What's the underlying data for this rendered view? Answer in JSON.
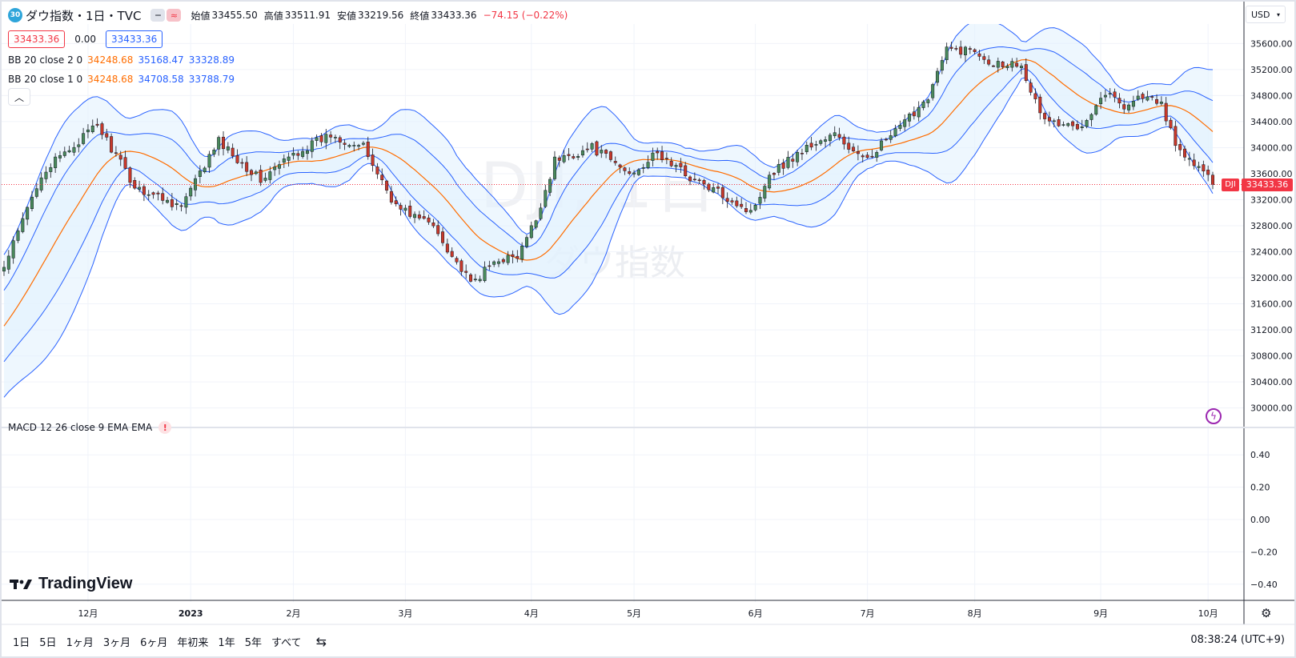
{
  "header": {
    "symbol_badge": "30",
    "title": "ダウ指数・1日・TVC",
    "pill_left_icon": "minus-icon",
    "pill_right_icon": "approx-icon",
    "ohlc": [
      {
        "label": "始値",
        "value": "33455.50"
      },
      {
        "label": "高値",
        "value": "33511.91"
      },
      {
        "label": "安値",
        "value": "33219.56"
      },
      {
        "label": "終値",
        "value": "33433.36"
      }
    ],
    "change": "−74.15 (−0.22%)",
    "bid": "33433.36",
    "spread": "0.00",
    "ask": "33433.36"
  },
  "indicators": {
    "bb2": {
      "label": "BB 20 close 2 0",
      "basis": "34248.68",
      "upper": "35168.47",
      "lower": "33328.89"
    },
    "bb1": {
      "label": "BB 20 close 1 0",
      "basis": "34248.68",
      "upper": "34708.58",
      "lower": "33788.79"
    },
    "macd": {
      "label": "MACD 12 26 close 9 EMA EMA"
    }
  },
  "currency": "USD",
  "watermark": {
    "line1": "DJI, 1日",
    "line2": "ダウ指数"
  },
  "last_price": {
    "symbol": "DJI",
    "value": "33433.36"
  },
  "logo": "TradingView",
  "ranges": [
    "1日",
    "5日",
    "1ヶ月",
    "3ヶ月",
    "6ヶ月",
    "年初来",
    "1年",
    "5年",
    "すべて"
  ],
  "clock": "08:38:24 (UTC+9)",
  "colors": {
    "up": "#4a8a5c",
    "down": "#c8392b",
    "bb_outer": "#2962ff",
    "bb_basis": "#ff6d00",
    "band_fill": "#e3f2fd",
    "last_price": "#f23645"
  },
  "chart_data": {
    "type": "candlestick",
    "price_axis": {
      "range": [
        29700,
        35900
      ],
      "ticks": [
        30000,
        30400,
        30800,
        31200,
        31600,
        32000,
        32400,
        32800,
        33200,
        33600,
        34000,
        34400,
        34800,
        35200,
        35600
      ]
    },
    "price_tick_labels": [
      "30000.00",
      "30400.00",
      "30800.00",
      "31200.00",
      "31600.00",
      "32000.00",
      "32400.00",
      "32800.00",
      "33200.00",
      "33600.00",
      "34000.00",
      "34400.00",
      "34800.00",
      "35200.00",
      "35600.00"
    ],
    "macd_axis": {
      "range": [
        -0.5,
        0.5
      ],
      "ticks": [
        -0.4,
        -0.2,
        0,
        0.2,
        0.4
      ]
    },
    "macd_tick_labels": [
      "−0.40",
      "−0.20",
      "0.00",
      "0.20",
      "0.40"
    ],
    "time_labels": [
      "12月",
      "2023",
      "2月",
      "3月",
      "4月",
      "5月",
      "6月",
      "7月",
      "8月",
      "9月",
      "10月"
    ],
    "time_label_bars": [
      18,
      40,
      62,
      86,
      113,
      135,
      161,
      185,
      208,
      235,
      258
    ],
    "num_bars": 260,
    "last_close": 33433.36,
    "anchors": [
      [
        0,
        32150
      ],
      [
        8,
        33600
      ],
      [
        20,
        34350
      ],
      [
        28,
        33400
      ],
      [
        38,
        33100
      ],
      [
        46,
        34100
      ],
      [
        55,
        33500
      ],
      [
        62,
        33900
      ],
      [
        70,
        34200
      ],
      [
        77,
        34000
      ],
      [
        84,
        33100
      ],
      [
        92,
        32800
      ],
      [
        100,
        31900
      ],
      [
        106,
        32300
      ],
      [
        110,
        32300
      ],
      [
        114,
        32900
      ],
      [
        118,
        33800
      ],
      [
        126,
        34000
      ],
      [
        134,
        33600
      ],
      [
        140,
        33900
      ],
      [
        148,
        33500
      ],
      [
        156,
        33200
      ],
      [
        160,
        33000
      ],
      [
        164,
        33600
      ],
      [
        172,
        34000
      ],
      [
        178,
        34200
      ],
      [
        184,
        33800
      ],
      [
        192,
        34300
      ],
      [
        198,
        34800
      ],
      [
        202,
        35500
      ],
      [
        208,
        35500
      ],
      [
        212,
        35300
      ],
      [
        218,
        35300
      ],
      [
        222,
        34500
      ],
      [
        226,
        34350
      ],
      [
        230,
        34300
      ],
      [
        236,
        34850
      ],
      [
        240,
        34650
      ],
      [
        244,
        34800
      ],
      [
        248,
        34650
      ],
      [
        252,
        33900
      ],
      [
        256,
        33700
      ],
      [
        259,
        33433
      ]
    ]
  }
}
